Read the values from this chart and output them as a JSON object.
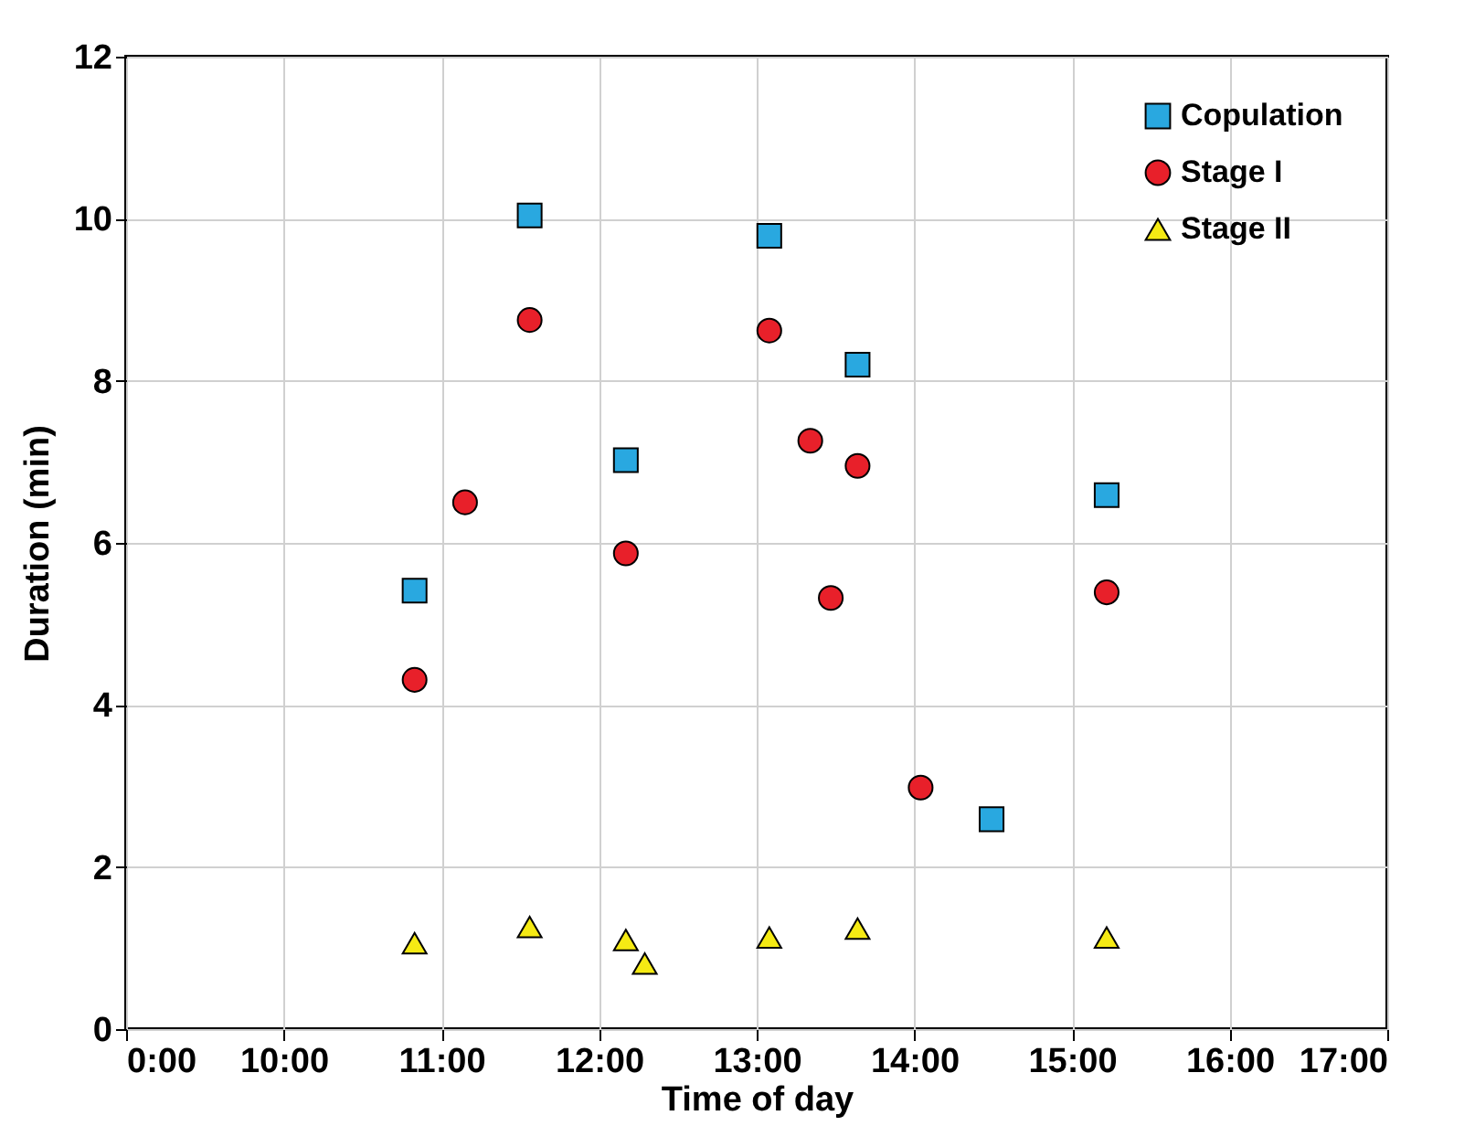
{
  "chart_data": {
    "type": "scatter",
    "xlabel": "Time of day",
    "ylabel": "Duration (min)",
    "xlim": [
      9,
      17
    ],
    "xticks": [
      {
        "value": 9,
        "label": "0:00"
      },
      {
        "value": 10,
        "label": "10:00"
      },
      {
        "value": 11,
        "label": "11:00"
      },
      {
        "value": 12,
        "label": "12:00"
      },
      {
        "value": 13,
        "label": "13:00"
      },
      {
        "value": 14,
        "label": "14:00"
      },
      {
        "value": 15,
        "label": "15:00"
      },
      {
        "value": 16,
        "label": "16:00"
      },
      {
        "value": 17,
        "label": "17:00"
      }
    ],
    "ylim": [
      0,
      12
    ],
    "yticks": [
      0,
      2,
      4,
      6,
      8,
      10,
      12
    ],
    "grid": true,
    "legend": "top right",
    "series": [
      {
        "name": "Copulation",
        "color": "#29a8e0",
        "marker": "square",
        "x": [
          10.83,
          11.56,
          12.17,
          13.08,
          13.64,
          14.49,
          15.22
        ],
        "values": [
          5.41,
          10.04,
          7.02,
          9.79,
          8.2,
          2.59,
          6.59
        ]
      },
      {
        "name": "Stage I",
        "color": "#e8202a",
        "marker": "circle",
        "x": [
          10.83,
          11.15,
          11.56,
          12.17,
          13.08,
          13.34,
          13.47,
          13.64,
          14.04,
          15.22
        ],
        "values": [
          4.31,
          6.5,
          8.75,
          5.87,
          8.62,
          7.26,
          5.32,
          6.95,
          2.98,
          5.39
        ]
      },
      {
        "name": "Stage II",
        "color": "#f5ea14",
        "marker": "triangle",
        "x": [
          10.83,
          11.56,
          12.17,
          12.29,
          13.08,
          13.64,
          15.22
        ],
        "values": [
          1.06,
          1.26,
          1.1,
          0.81,
          1.13,
          1.24,
          1.13
        ]
      }
    ]
  }
}
